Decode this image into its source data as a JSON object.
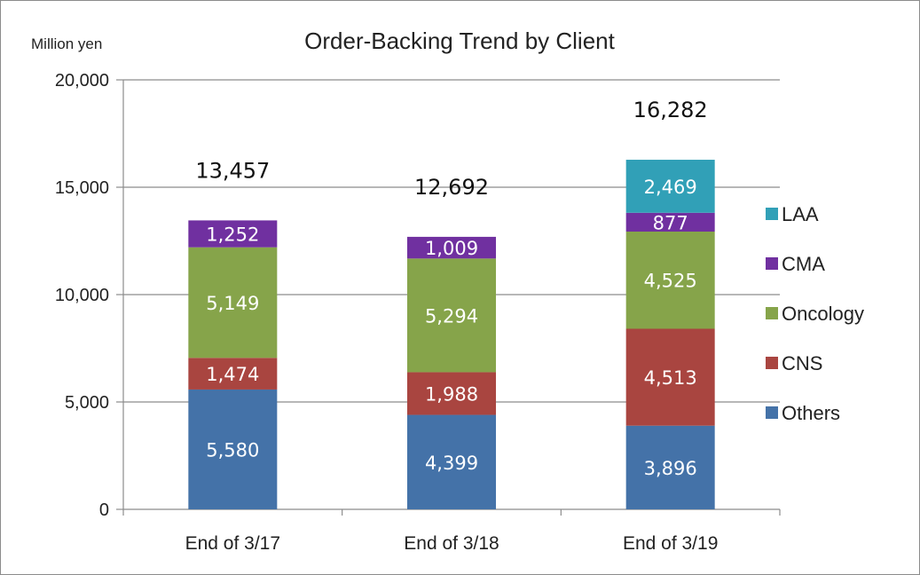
{
  "chart_data": {
    "type": "bar",
    "stacked": true,
    "title": "Order-Backing Trend by Client",
    "ylabel": "Million yen",
    "xlabel": "",
    "ylim": [
      0,
      20000
    ],
    "yticks": [
      "0",
      "5,000",
      "10,000",
      "15,000",
      "20,000"
    ],
    "categories": [
      "End of 3/17",
      "End of 3/18",
      "End of 3/19"
    ],
    "series": [
      {
        "name": "Others",
        "color": "#4472a8",
        "values": [
          5580,
          4399,
          3896
        ],
        "labels": [
          "5,580",
          "4,399",
          "3,896"
        ]
      },
      {
        "name": "CNS",
        "color": "#a94540",
        "values": [
          1474,
          1988,
          4513
        ],
        "labels": [
          "1,474",
          "1,988",
          "4,513"
        ]
      },
      {
        "name": "Oncology",
        "color": "#86a44a",
        "values": [
          5149,
          5294,
          4525
        ],
        "labels": [
          "5,149",
          "5,294",
          "4,525"
        ]
      },
      {
        "name": "CMA",
        "color": "#7030a0",
        "values": [
          1252,
          1009,
          877
        ],
        "labels": [
          "1,252",
          "1,009",
          "877"
        ]
      },
      {
        "name": "LAA",
        "color": "#31a0b7",
        "values": [
          0,
          0,
          2469
        ],
        "labels": [
          "",
          "",
          "2,469"
        ]
      }
    ],
    "totals": [
      13457,
      12692,
      16282
    ],
    "total_labels": [
      "13,457",
      "12,692",
      "16,282"
    ],
    "grid": true,
    "legend_position": "right"
  }
}
